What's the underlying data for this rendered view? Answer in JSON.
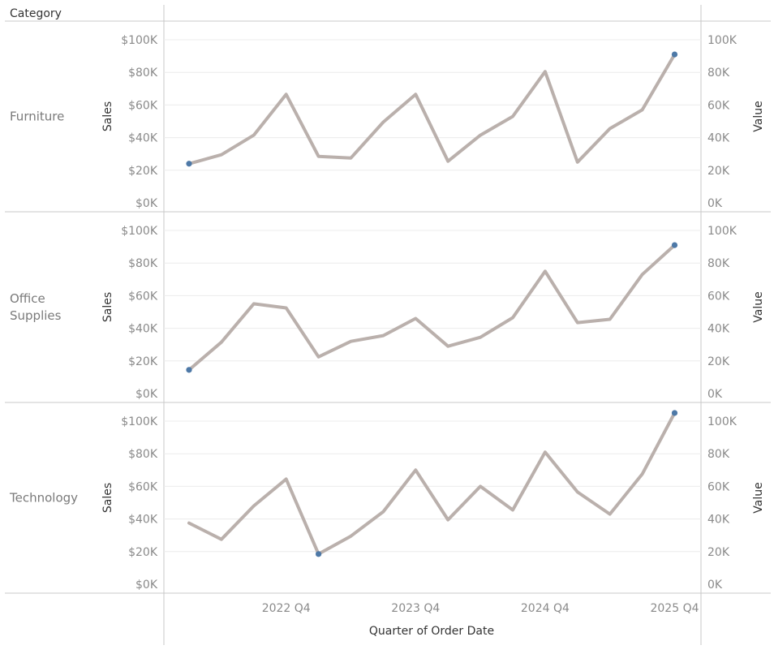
{
  "header": {
    "row_field": "Category"
  },
  "x_axis": {
    "title": "Quarter of Order Date",
    "tick_labels": [
      "2022 Q4",
      "2023 Q4",
      "2024 Q4",
      "2025 Q4"
    ]
  },
  "colors": {
    "line": "#bab0ac",
    "highlight": "#4e79a7",
    "grid": "#ececec",
    "border": "#c8c8c8",
    "tick_text": "#8a8a8a",
    "label_text": "#333333"
  },
  "chart_data": {
    "type": "line",
    "x": [
      "2022 Q1",
      "2022 Q2",
      "2022 Q3",
      "2022 Q4",
      "2023 Q1",
      "2023 Q2",
      "2023 Q3",
      "2023 Q4",
      "2024 Q1",
      "2024 Q2",
      "2024 Q3",
      "2024 Q4",
      "2025 Q1",
      "2025 Q2",
      "2025 Q3",
      "2025 Q4"
    ],
    "xlabel": "Quarter of Order Date",
    "left_axis": {
      "label": "Sales",
      "ylim": [
        0,
        105000
      ],
      "ticks": [
        "$0K",
        "$20K",
        "$40K",
        "$60K",
        "$80K",
        "$100K"
      ]
    },
    "right_axis": {
      "label": "Value",
      "ylim": [
        0,
        105000
      ],
      "ticks": [
        "0K",
        "20K",
        "40K",
        "60K",
        "80K",
        "100K"
      ]
    },
    "grid": true,
    "panels": [
      {
        "category": "Furniture",
        "values": [
          24000,
          29500,
          41500,
          66500,
          28500,
          27500,
          49500,
          66500,
          25500,
          41500,
          53000,
          80500,
          25000,
          45500,
          57000,
          91000
        ],
        "highlighted_points": [
          0,
          15
        ]
      },
      {
        "category": "Office Supplies",
        "values": [
          14500,
          31500,
          55000,
          52500,
          22500,
          32000,
          35500,
          46000,
          29000,
          34500,
          46500,
          75000,
          43500,
          45500,
          73000,
          91000
        ],
        "highlighted_points": [
          0,
          15
        ]
      },
      {
        "category": "Technology",
        "values": [
          37500,
          27500,
          48000,
          64500,
          18500,
          29500,
          44500,
          70000,
          39500,
          60000,
          45500,
          81000,
          56500,
          43000,
          67500,
          105000
        ],
        "highlighted_points": [
          4,
          15
        ]
      }
    ]
  }
}
